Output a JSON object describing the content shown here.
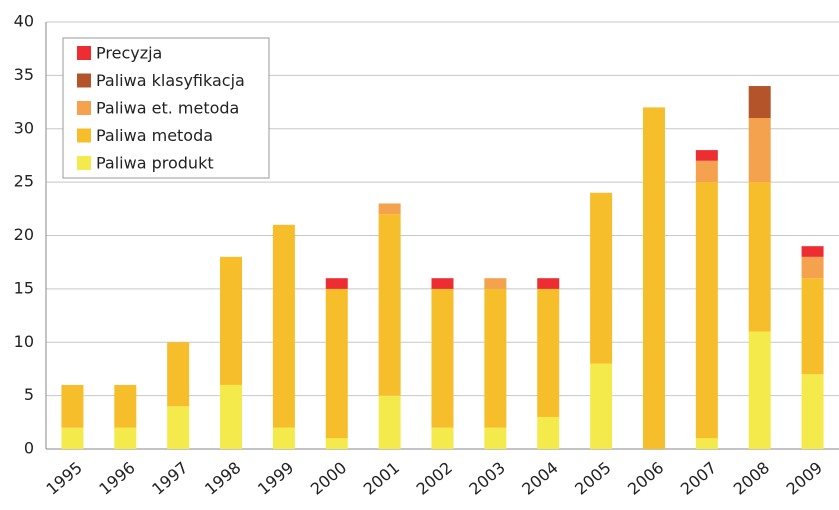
{
  "chart_data": {
    "type": "stacked_bar",
    "categories": [
      "1995",
      "1996",
      "1997",
      "1998",
      "1999",
      "2000",
      "2001",
      "2002",
      "2003",
      "2004",
      "2005",
      "2006",
      "2007",
      "2008",
      "2009"
    ],
    "series": [
      {
        "name": "Paliwa produkt",
        "color": "#f5ea4c",
        "values": [
          2,
          2,
          4,
          6,
          2,
          1,
          5,
          2,
          2,
          3,
          8,
          0,
          1,
          11,
          7
        ]
      },
      {
        "name": "Paliwa metoda",
        "color": "#f7be2c",
        "values": [
          4,
          4,
          6,
          12,
          19,
          14,
          17,
          13,
          13,
          12,
          16,
          32,
          24,
          14,
          9
        ]
      },
      {
        "name": "Paliwa et. metoda",
        "color": "#f4a24d",
        "values": [
          0,
          0,
          0,
          0,
          0,
          0,
          1,
          0,
          1,
          0,
          0,
          0,
          2,
          6,
          2
        ]
      },
      {
        "name": "Paliwa klasyfikacja",
        "color": "#b3542b",
        "values": [
          0,
          0,
          0,
          0,
          0,
          0,
          0,
          0,
          0,
          0,
          0,
          0,
          0,
          3,
          0
        ]
      },
      {
        "name": "Precyzja",
        "color": "#ee2d33",
        "values": [
          0,
          0,
          0,
          0,
          0,
          1,
          0,
          1,
          0,
          1,
          0,
          0,
          1,
          0,
          1
        ]
      }
    ],
    "ylim": [
      0,
      40
    ],
    "yticks": [
      0,
      5,
      10,
      15,
      20,
      25,
      30,
      35,
      40
    ],
    "grid": true,
    "legend": "upper left"
  }
}
